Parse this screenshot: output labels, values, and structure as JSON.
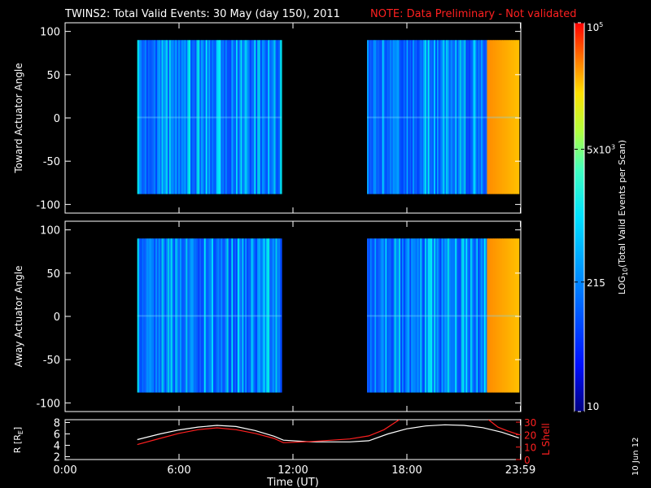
{
  "title_main": "TWINS2: Total Valid Events: 30 May (day 150), 2011",
  "title_note": "NOTE: Data Preliminary - Not validated",
  "date_stamp": "10 Jun 12",
  "colors": {
    "note": "#ff2020",
    "rshell_line": "#ffffff",
    "lshell_line": "#ff2020"
  },
  "chart_data": [
    {
      "type": "heatmap",
      "panel": "toward",
      "ylabel": "Toward Actuator Angle",
      "ylim": [
        -110,
        110
      ],
      "yticks": [
        100,
        50,
        0,
        -50,
        -100
      ],
      "xlim": [
        0,
        24
      ],
      "data_blocks": [
        {
          "start_hour": 3.8,
          "end_hour": 11.4,
          "angle_range": [
            -88,
            90
          ]
        },
        {
          "start_hour": 15.9,
          "end_hour": 23.85,
          "angle_range": [
            -88,
            90
          ]
        }
      ]
    },
    {
      "type": "heatmap",
      "panel": "away",
      "ylabel": "Away Actuator Angle",
      "ylim": [
        -110,
        110
      ],
      "yticks": [
        100,
        50,
        0,
        -50,
        -100
      ],
      "xlim": [
        0,
        24
      ],
      "data_blocks": [
        {
          "start_hour": 3.8,
          "end_hour": 11.4,
          "angle_range": [
            -88,
            90
          ]
        },
        {
          "start_hour": 15.9,
          "end_hour": 23.85,
          "angle_range": [
            -88,
            90
          ]
        }
      ]
    },
    {
      "type": "line",
      "panel": "orbit",
      "ylabel_left": "R [R",
      "ylabel_left_sub": "E",
      "ylabel_left_end": "]",
      "ylabel_right": "L Shell",
      "yticks_left": [
        8,
        6,
        4,
        2
      ],
      "yticks_right": [
        30,
        20,
        10,
        0
      ],
      "ylim_left": [
        1.5,
        8.5
      ],
      "ylim_right": [
        0,
        32
      ],
      "x_ticks": [
        "0:00",
        "6:00",
        "12:00",
        "18:00",
        "23:59"
      ],
      "x_tick_hours": [
        0,
        6,
        12,
        18,
        23.98
      ],
      "xlabel": "Time (UT)",
      "series": [
        {
          "axis": "left",
          "x": [
            3.8,
            5,
            6,
            7,
            8,
            9,
            10,
            11,
            11.5,
            13,
            15,
            16,
            17,
            18,
            19,
            20,
            21,
            22,
            23,
            23.9
          ],
          "y": [
            5.0,
            6.0,
            6.7,
            7.2,
            7.5,
            7.3,
            6.6,
            5.6,
            4.9,
            4.6,
            4.6,
            4.8,
            6.0,
            6.9,
            7.4,
            7.6,
            7.5,
            7.1,
            6.3,
            5.3
          ]
        },
        {
          "axis": "right",
          "x": [
            3.8,
            5,
            6,
            7,
            8,
            9,
            10,
            11,
            11.5,
            13,
            15,
            16,
            16.8,
            17.3,
            17.6
          ],
          "y": [
            12,
            17,
            21,
            24,
            25.5,
            24,
            21,
            17,
            13.5,
            14.5,
            16.5,
            19,
            24,
            29,
            32
          ]
        },
        {
          "axis": "right",
          "x": [
            22.3,
            22.8,
            23.3,
            23.9
          ],
          "y": [
            32,
            26,
            23,
            20
          ]
        }
      ]
    },
    {
      "type": "colorbar",
      "label_parts": [
        "LOG",
        "10",
        "(Total Valid Events per Scan)"
      ],
      "ticks": [
        {
          "value": 10,
          "label": "10"
        },
        {
          "value": 215,
          "label": "215"
        },
        {
          "value": 5000,
          "label_base": "5x10",
          "label_exp": "3"
        },
        {
          "value": 100000,
          "label_base": "10",
          "label_exp": "5"
        }
      ],
      "range": [
        10,
        100000
      ]
    }
  ]
}
